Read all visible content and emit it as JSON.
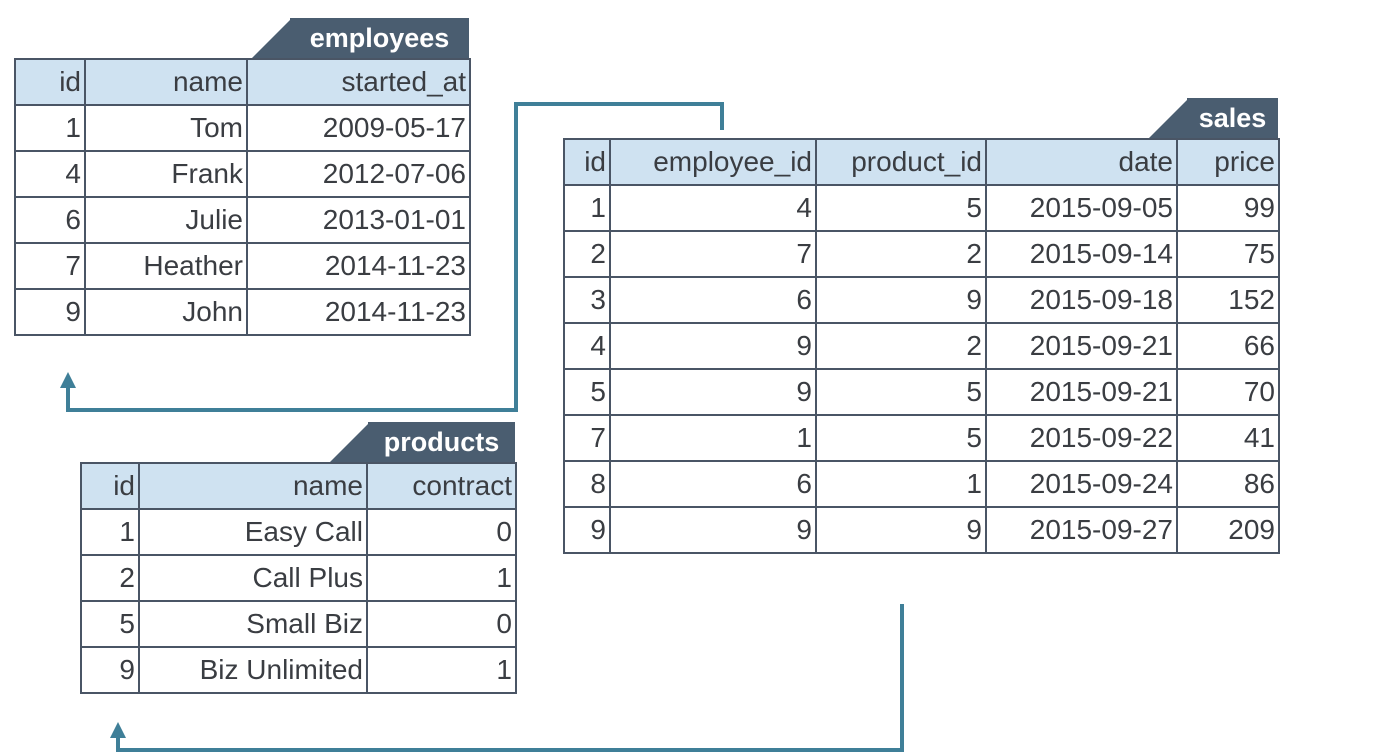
{
  "colors": {
    "header_bg": "#cfe2f1",
    "tab_bg": "#4a5d70",
    "border": "#4a5565",
    "arrow": "#3f7f98"
  },
  "tables": {
    "employees": {
      "name": "employees",
      "columns": [
        "id",
        "name",
        "started_at"
      ],
      "rows": [
        [
          "1",
          "Tom",
          "2009-05-17"
        ],
        [
          "4",
          "Frank",
          "2012-07-06"
        ],
        [
          "6",
          "Julie",
          "2013-01-01"
        ],
        [
          "7",
          "Heather",
          "2014-11-23"
        ],
        [
          "9",
          "John",
          "2014-11-23"
        ]
      ]
    },
    "sales": {
      "name": "sales",
      "columns": [
        "id",
        "employee_id",
        "product_id",
        "date",
        "price"
      ],
      "rows": [
        [
          "1",
          "4",
          "5",
          "2015-09-05",
          "99"
        ],
        [
          "2",
          "7",
          "2",
          "2015-09-14",
          "75"
        ],
        [
          "3",
          "6",
          "9",
          "2015-09-18",
          "152"
        ],
        [
          "4",
          "9",
          "2",
          "2015-09-21",
          "66"
        ],
        [
          "5",
          "9",
          "5",
          "2015-09-21",
          "70"
        ],
        [
          "7",
          "1",
          "5",
          "2015-09-22",
          "41"
        ],
        [
          "8",
          "6",
          "1",
          "2015-09-24",
          "86"
        ],
        [
          "9",
          "9",
          "9",
          "2015-09-27",
          "209"
        ]
      ]
    },
    "products": {
      "name": "products",
      "columns": [
        "id",
        "name",
        "contract"
      ],
      "rows": [
        [
          "1",
          "Easy Call",
          "0"
        ],
        [
          "2",
          "Call Plus",
          "1"
        ],
        [
          "5",
          "Small Biz",
          "0"
        ],
        [
          "9",
          "Biz Unlimited",
          "1"
        ]
      ]
    }
  },
  "relations": [
    {
      "from": "sales.employee_id",
      "to": "employees.id"
    },
    {
      "from": "sales.product_id",
      "to": "products.id"
    }
  ]
}
